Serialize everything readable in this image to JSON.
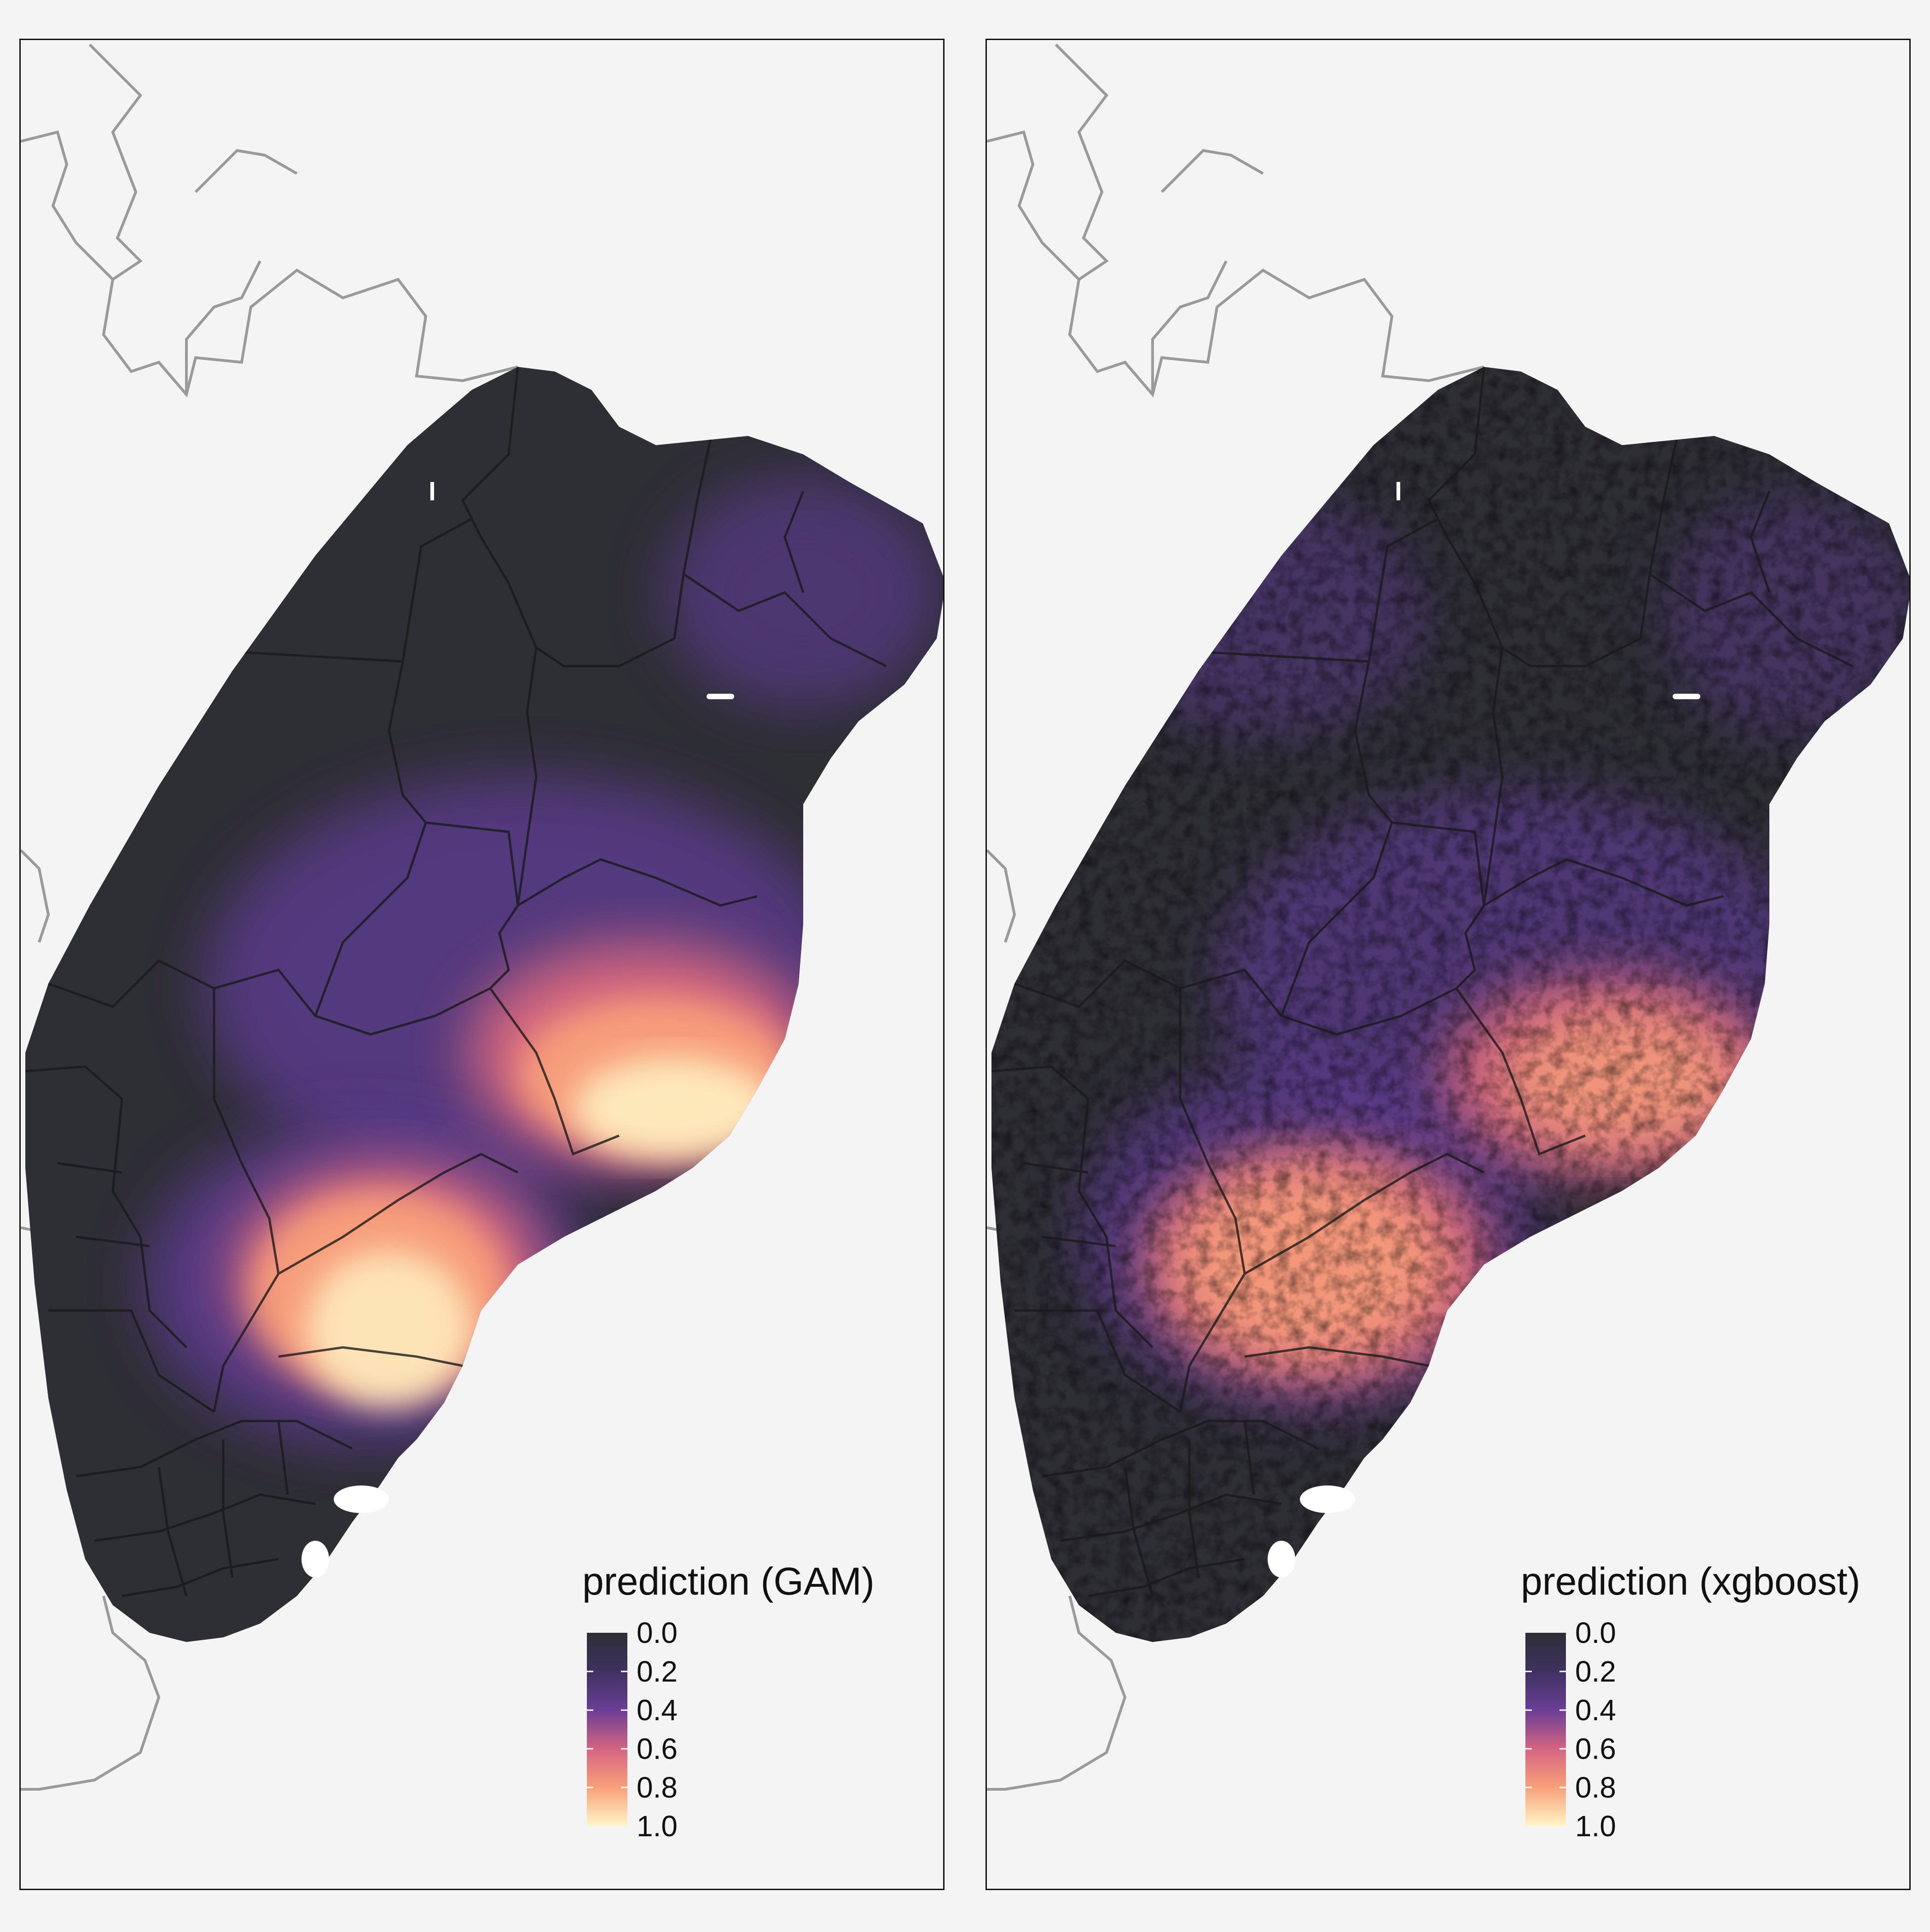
{
  "panels": [
    {
      "id": "gam",
      "legend_title": "prediction (GAM)",
      "pattern": "smooth"
    },
    {
      "id": "xgboost",
      "legend_title": "prediction (xgboost)",
      "pattern": "noisy"
    }
  ],
  "legend": {
    "ticks": [
      "0.0",
      "0.2",
      "0.4",
      "0.6",
      "0.8",
      "1.0"
    ],
    "range": [
      0.0,
      1.0
    ]
  },
  "colors": {
    "background": "#f4f4f4",
    "low": "#2e2e35",
    "mid_low": "#5a3a8a",
    "mid": "#e06a7f",
    "mid_high": "#f9a07a",
    "high": "#fff6c6",
    "borders": "#1a1a1a",
    "country_lines": "#9a9a9a"
  }
}
